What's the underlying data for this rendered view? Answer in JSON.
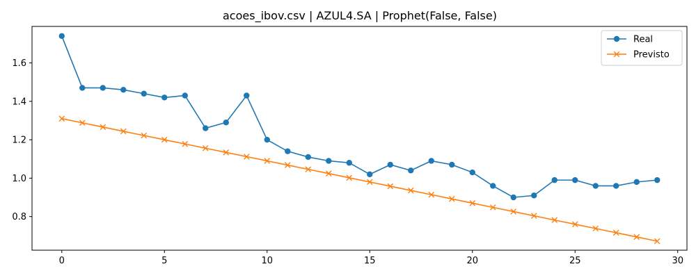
{
  "chart_data": {
    "type": "line",
    "title": "acoes_ibov.csv | AZUL4.SA | Prophet(False, False)",
    "xlabel": "",
    "ylabel": "",
    "xlim": [
      -1.45,
      30.45
    ],
    "ylim": [
      0.625,
      1.79
    ],
    "x_ticks": [
      0,
      5,
      10,
      15,
      20,
      25,
      30
    ],
    "y_ticks": [
      0.8,
      1.0,
      1.2,
      1.4,
      1.6
    ],
    "grid": false,
    "legend_position": "top-right",
    "x": [
      0,
      1,
      2,
      3,
      4,
      5,
      6,
      7,
      8,
      9,
      10,
      11,
      12,
      13,
      14,
      15,
      16,
      17,
      18,
      19,
      20,
      21,
      22,
      23,
      24,
      25,
      26,
      27,
      28,
      29
    ],
    "series": [
      {
        "name": "Real",
        "color": "#1f77b4",
        "marker": "circle",
        "values": [
          1.74,
          1.47,
          1.47,
          1.46,
          1.44,
          1.42,
          1.43,
          1.26,
          1.29,
          1.43,
          1.2,
          1.14,
          1.11,
          1.09,
          1.08,
          1.02,
          1.07,
          1.04,
          1.09,
          1.07,
          1.03,
          0.96,
          0.9,
          0.91,
          0.99,
          0.99,
          0.96,
          0.96,
          0.98,
          0.99
        ]
      },
      {
        "name": "Previsto",
        "color": "#ff7f0e",
        "marker": "x",
        "values": [
          1.31,
          1.288,
          1.266,
          1.244,
          1.222,
          1.2,
          1.178,
          1.156,
          1.134,
          1.112,
          1.09,
          1.068,
          1.046,
          1.024,
          1.002,
          0.98,
          0.958,
          0.936,
          0.914,
          0.892,
          0.87,
          0.848,
          0.826,
          0.804,
          0.782,
          0.76,
          0.738,
          0.716,
          0.694,
          0.672
        ]
      }
    ]
  }
}
